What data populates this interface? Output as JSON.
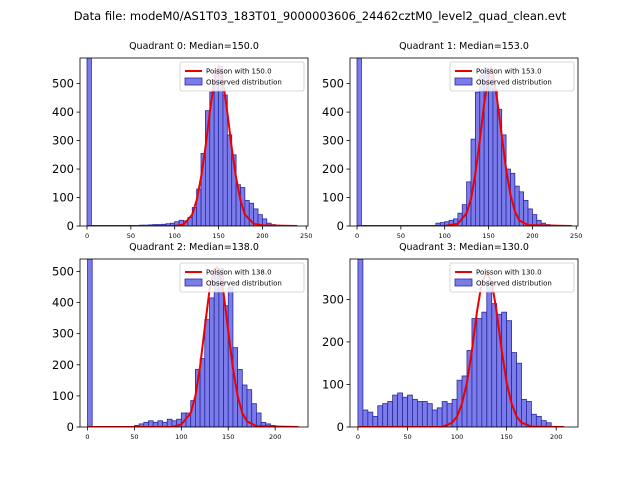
{
  "suptitle": "Data file: modeM0/AS1T03_183T01_9000003606_24462cztM0_level2_quad_clean.evt",
  "colors": {
    "bar_fill": "#7b7be9",
    "bar_edge": "#2a2aa0",
    "poisson_line": "#ee0000"
  },
  "legend": {
    "observed_label": "Observed distribution"
  },
  "chart_data": [
    {
      "type": "bar",
      "title": "Quadrant 0: Median=150.0",
      "legend_position": "upper right",
      "xlim": [
        -8,
        252
      ],
      "ylim": [
        0,
        590
      ],
      "xticks": [
        0,
        50,
        100,
        150,
        200,
        250
      ],
      "yticks": [
        0,
        100,
        200,
        300,
        400,
        500
      ],
      "bin_width": 5,
      "bin_starts": [
        0,
        50,
        55,
        60,
        65,
        70,
        75,
        80,
        85,
        90,
        95,
        100,
        105,
        110,
        115,
        120,
        125,
        130,
        135,
        140,
        145,
        150,
        155,
        160,
        165,
        170,
        175,
        180,
        185,
        190,
        195,
        200,
        205,
        210,
        215,
        220
      ],
      "counts": [
        590,
        2,
        2,
        3,
        3,
        4,
        5,
        5,
        6,
        8,
        10,
        15,
        20,
        18,
        30,
        65,
        130,
        255,
        405,
        470,
        545,
        560,
        460,
        320,
        250,
        145,
        135,
        90,
        80,
        60,
        40,
        25,
        10,
        5,
        3,
        2
      ],
      "poisson_mean": 150.0,
      "poisson_label": "Poisson with 150.0",
      "poisson_x": [
        0,
        100,
        110,
        120,
        125,
        130,
        135,
        140,
        145,
        150,
        155,
        160,
        165,
        170,
        175,
        180,
        190,
        200,
        240
      ],
      "poisson_y": [
        0,
        0,
        5,
        40,
        90,
        170,
        275,
        400,
        510,
        560,
        510,
        400,
        275,
        170,
        90,
        40,
        8,
        2,
        0
      ]
    },
    {
      "type": "bar",
      "title": "Quadrant 1: Median=153.0",
      "legend_position": "upper right",
      "xlim": [
        -8,
        252
      ],
      "ylim": [
        0,
        590
      ],
      "xticks": [
        0,
        50,
        100,
        150,
        200,
        250
      ],
      "yticks": [
        0,
        100,
        200,
        300,
        400,
        500
      ],
      "bin_width": 5,
      "bin_starts": [
        0,
        90,
        95,
        100,
        105,
        110,
        115,
        120,
        125,
        130,
        135,
        140,
        145,
        150,
        155,
        160,
        165,
        170,
        175,
        180,
        185,
        190,
        195,
        200,
        205,
        210,
        215,
        220,
        225
      ],
      "counts": [
        590,
        10,
        12,
        15,
        20,
        25,
        45,
        75,
        155,
        305,
        470,
        530,
        555,
        525,
        480,
        410,
        320,
        200,
        185,
        140,
        120,
        90,
        60,
        40,
        20,
        10,
        5,
        3,
        2
      ],
      "poisson_mean": 153.0,
      "poisson_label": "Poisson with 153.0",
      "poisson_x": [
        0,
        100,
        115,
        125,
        130,
        135,
        140,
        145,
        150,
        153,
        155,
        160,
        165,
        170,
        175,
        180,
        185,
        195,
        245
      ],
      "poisson_y": [
        0,
        0,
        8,
        45,
        95,
        185,
        300,
        430,
        525,
        555,
        535,
        440,
        320,
        200,
        110,
        52,
        20,
        3,
        0
      ]
    },
    {
      "type": "bar",
      "title": "Quadrant 2: Median=138.0",
      "legend_position": "upper right",
      "xlim": [
        -8,
        235
      ],
      "ylim": [
        0,
        540
      ],
      "xticks": [
        0,
        50,
        100,
        150,
        200
      ],
      "yticks": [
        0,
        100,
        200,
        300,
        400,
        500
      ],
      "bin_width": 5,
      "bin_starts": [
        0,
        50,
        55,
        60,
        65,
        70,
        75,
        80,
        85,
        90,
        95,
        100,
        105,
        110,
        115,
        120,
        125,
        130,
        135,
        140,
        145,
        150,
        155,
        160,
        165,
        170,
        175,
        180,
        185,
        190,
        195
      ],
      "counts": [
        540,
        5,
        10,
        15,
        20,
        15,
        20,
        15,
        25,
        20,
        25,
        45,
        45,
        85,
        185,
        220,
        345,
        415,
        505,
        510,
        390,
        450,
        255,
        185,
        135,
        120,
        75,
        45,
        15,
        10,
        5
      ],
      "poisson_mean": 138.0,
      "poisson_label": "Poisson with 138.0",
      "poisson_x": [
        0,
        90,
        100,
        110,
        115,
        120,
        125,
        130,
        135,
        138,
        140,
        145,
        150,
        155,
        160,
        165,
        170,
        180,
        225
      ],
      "poisson_y": [
        0,
        0,
        8,
        45,
        100,
        195,
        320,
        440,
        505,
        515,
        505,
        430,
        310,
        190,
        100,
        45,
        18,
        3,
        0
      ]
    },
    {
      "type": "bar",
      "title": "Quadrant 3: Median=130.0",
      "legend_position": "upper right",
      "xlim": [
        -8,
        222
      ],
      "ylim": [
        0,
        395
      ],
      "xticks": [
        0,
        50,
        100,
        150,
        200
      ],
      "yticks": [
        0,
        100,
        200,
        300
      ],
      "bin_width": 5,
      "bin_starts": [
        0,
        5,
        10,
        15,
        20,
        25,
        30,
        35,
        40,
        45,
        50,
        55,
        60,
        65,
        70,
        75,
        80,
        85,
        90,
        95,
        100,
        105,
        110,
        115,
        120,
        125,
        130,
        135,
        140,
        145,
        150,
        155,
        160,
        165,
        170,
        175,
        180,
        185,
        190
      ],
      "counts": [
        395,
        40,
        35,
        25,
        50,
        55,
        60,
        75,
        80,
        70,
        75,
        65,
        60,
        60,
        55,
        40,
        45,
        60,
        55,
        65,
        110,
        120,
        180,
        255,
        255,
        270,
        345,
        290,
        265,
        270,
        250,
        175,
        150,
        65,
        60,
        30,
        25,
        15,
        10
      ],
      "poisson_mean": 130.0,
      "poisson_label": "Poisson with 130.0",
      "poisson_x": [
        0,
        85,
        95,
        100,
        105,
        110,
        115,
        120,
        125,
        130,
        135,
        140,
        145,
        150,
        155,
        160,
        165,
        175,
        208
      ],
      "poisson_y": [
        0,
        0,
        10,
        25,
        55,
        105,
        180,
        270,
        340,
        365,
        340,
        270,
        180,
        105,
        55,
        25,
        10,
        1,
        0
      ]
    }
  ]
}
